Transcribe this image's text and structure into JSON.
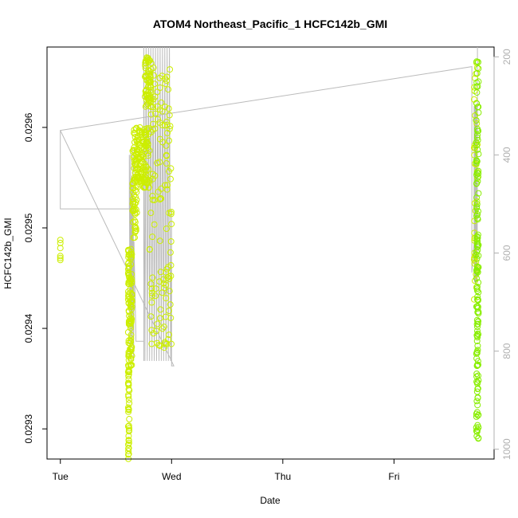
{
  "chart_data": {
    "type": "scatter",
    "title": "ATOM4 Northeast_Pacific_1 HCFC142b_GMI",
    "xlabel": "Date",
    "ylabel": "HCFC142b_GMI",
    "x_ticks": [
      "Tue",
      "Wed",
      "Thu",
      "Fri"
    ],
    "y_ticks": [
      "0.0293",
      "0.0294",
      "0.0295",
      "0.0296"
    ],
    "y_tick_values": [
      0.0293,
      0.0294,
      0.0295,
      0.0296
    ],
    "y_lim": [
      0.02927,
      0.02968
    ],
    "y2_ticks": [
      "200",
      "400",
      "600",
      "800",
      "1000"
    ],
    "y2_tick_values": [
      200,
      400,
      600,
      800,
      1000
    ],
    "y2_lim": [
      1020,
      180
    ],
    "y2_reversed": true,
    "x_lim_days": [
      -0.12,
      3.9
    ],
    "grid": false,
    "colors": {
      "points_early": "#ccee00",
      "points_late": "#88ee00",
      "pressure_line": "#bbbbbb"
    },
    "segments": [
      {
        "day_range": [
          0.0,
          0.0
        ],
        "y_range": [
          0.02947,
          0.02949
        ]
      },
      {
        "day_range": [
          0.6,
          0.68
        ],
        "y_range": [
          0.02927,
          0.02948
        ]
      },
      {
        "day_range": [
          0.68,
          0.8
        ],
        "y_range": [
          0.02955,
          0.0296
        ]
      },
      {
        "day_range": [
          0.8,
          1.0
        ],
        "y_range": [
          0.02938,
          0.02967
        ]
      },
      {
        "day_range": [
          3.7,
          3.75
        ],
        "y_range": [
          0.02929,
          0.02967
        ]
      }
    ]
  }
}
